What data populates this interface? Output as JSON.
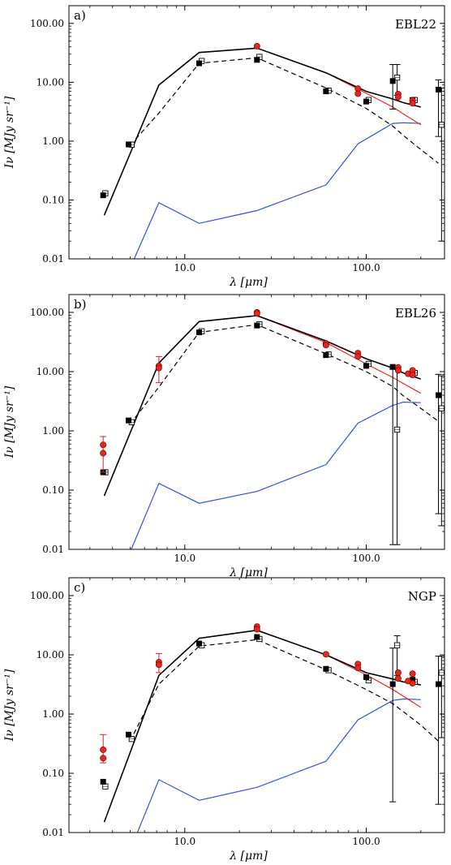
{
  "chart_data": [
    {
      "type": "line",
      "panel_label": "a)",
      "field_label": "EBL22",
      "xlabel": "λ [μm]",
      "ylabel": "Iν [MJy sr⁻¹]",
      "xscale": "log",
      "yscale": "log",
      "xlim": [
        2.3,
        270
      ],
      "ylim": [
        0.01,
        200
      ],
      "xticks": [
        "10.0",
        "100.0"
      ],
      "yticks": [
        "0.01",
        "0.10",
        "1.00",
        "10.00",
        "100.00"
      ],
      "series": [
        {
          "style": "total",
          "color": "#000000",
          "x": [
            3.6,
            7.2,
            12,
            25,
            60,
            100,
            140,
            160,
            200
          ],
          "y": [
            0.055,
            9.0,
            32,
            38,
            14.5,
            7.0,
            5.2,
            4.5,
            3.8
          ]
        },
        {
          "style": "model-red",
          "color": "#e8281e",
          "x": [
            25,
            60,
            100,
            140,
            160,
            200
          ],
          "y": [
            38,
            14.5,
            6.5,
            3.8,
            2.9,
            1.9
          ]
        },
        {
          "style": "dashed",
          "color": "#000000",
          "x": [
            5.0,
            7.2,
            12,
            25,
            60,
            100,
            140,
            160,
            200,
            250
          ],
          "y": [
            0.85,
            3.0,
            21,
            26,
            8.0,
            3.6,
            1.8,
            1.25,
            0.72,
            0.42
          ]
        },
        {
          "style": "component-blue",
          "color": "#2b53e6",
          "x": [
            5.0,
            7.2,
            12,
            25,
            60,
            90,
            140,
            160,
            200
          ],
          "y": [
            0.007,
            0.09,
            0.04,
            0.066,
            0.18,
            0.9,
            2.0,
            2.05,
            2.0
          ]
        }
      ],
      "observed": [
        {
          "x": 3.55,
          "y": 0.12
        },
        {
          "x": 4.9,
          "y": 0.88
        },
        {
          "x": 12,
          "y": 21
        },
        {
          "x": 25,
          "y": 24
        },
        {
          "x": 60,
          "y": 7.0
        },
        {
          "x": 100,
          "y": 4.7
        },
        {
          "x": 140,
          "y": 10.5,
          "err": [
            3.5,
            20
          ]
        },
        {
          "x": 180,
          "y": 5.0
        },
        {
          "x": 250,
          "y": 7.5,
          "err": [
            1.2,
            11
          ]
        }
      ],
      "model_points": [
        {
          "x": 3.65,
          "y": 0.13
        },
        {
          "x": 5.1,
          "y": 0.87
        },
        {
          "x": 12.4,
          "y": 23
        },
        {
          "x": 25.8,
          "y": 27
        },
        {
          "x": 62,
          "y": 7.2
        },
        {
          "x": 103,
          "y": 5.0
        },
        {
          "x": 148,
          "y": 12,
          "err": [
            6,
            20
          ]
        },
        {
          "x": 185,
          "y": 5.0
        },
        {
          "x": 260,
          "y": 1.9,
          "err": [
            0.02,
            8
          ]
        }
      ],
      "red_points": [
        {
          "x": 25,
          "y": 41
        },
        {
          "x": 90,
          "y": 7.8
        },
        {
          "x": 90,
          "y": 6.4
        },
        {
          "x": 150,
          "y": 6.3
        },
        {
          "x": 150,
          "y": 5.6
        },
        {
          "x": 180,
          "y": 4.9
        },
        {
          "x": 180,
          "y": 4.4
        }
      ]
    },
    {
      "type": "line",
      "panel_label": "b)",
      "field_label": "EBL26",
      "xlabel": "λ [μm]",
      "ylabel": "Iν [MJy sr⁻¹]",
      "xscale": "log",
      "yscale": "log",
      "xlim": [
        2.3,
        270
      ],
      "ylim": [
        0.01,
        200
      ],
      "xticks": [
        "10.0",
        "100.0"
      ],
      "yticks": [
        "0.01",
        "0.10",
        "1.00",
        "10.00",
        "100.00"
      ],
      "series": [
        {
          "style": "total",
          "color": "#000000",
          "x": [
            3.6,
            7.2,
            12,
            25,
            60,
            100,
            140,
            160,
            200
          ],
          "y": [
            0.08,
            14,
            70,
            88,
            33,
            16.5,
            11.5,
            9.5,
            7.5
          ]
        },
        {
          "style": "model-red",
          "color": "#e8281e",
          "x": [
            25,
            60,
            100,
            140,
            160,
            200
          ],
          "y": [
            88,
            31,
            13.5,
            8.0,
            6.3,
            4.3
          ]
        },
        {
          "style": "dashed",
          "color": "#000000",
          "x": [
            5.0,
            7.2,
            12,
            25,
            60,
            100,
            140,
            160,
            200,
            250
          ],
          "y": [
            1.3,
            5.5,
            46,
            62,
            20,
            10,
            5.6,
            3.9,
            2.4,
            1.45
          ]
        },
        {
          "style": "component-blue",
          "color": "#2b53e6",
          "x": [
            5.0,
            7.2,
            12,
            25,
            60,
            90,
            140,
            160,
            200
          ],
          "y": [
            0.009,
            0.13,
            0.06,
            0.095,
            0.27,
            1.35,
            2.7,
            3.05,
            3.0
          ]
        }
      ],
      "observed": [
        {
          "x": 3.55,
          "y": 0.2
        },
        {
          "x": 4.9,
          "y": 1.5
        },
        {
          "x": 12,
          "y": 46
        },
        {
          "x": 25,
          "y": 60
        },
        {
          "x": 60,
          "y": 19
        },
        {
          "x": 100,
          "y": 12.5
        },
        {
          "x": 140,
          "y": 12,
          "err": [
            0.012,
            11
          ]
        },
        {
          "x": 180,
          "y": 9.0
        },
        {
          "x": 250,
          "y": 4.0,
          "err": [
            0.04,
            9
          ]
        }
      ],
      "model_points": [
        {
          "x": 3.65,
          "y": 0.2
        },
        {
          "x": 5.1,
          "y": 1.4
        },
        {
          "x": 12.4,
          "y": 48
        },
        {
          "x": 25.8,
          "y": 63
        },
        {
          "x": 62,
          "y": 19.5
        },
        {
          "x": 103,
          "y": 13.5
        },
        {
          "x": 148,
          "y": 1.05,
          "err": [
            0.012,
            11
          ]
        },
        {
          "x": 185,
          "y": 9.5
        },
        {
          "x": 260,
          "y": 2.4,
          "err": [
            0.025,
            8.5
          ]
        }
      ],
      "red_points": [
        {
          "x": 3.55,
          "y": 0.58
        },
        {
          "x": 3.55,
          "y": 0.42,
          "err": [
            0.2,
            0.8
          ]
        },
        {
          "x": 7.2,
          "y": 12.5,
          "err": [
            6.5,
            18
          ]
        },
        {
          "x": 7.2,
          "y": 11.5
        },
        {
          "x": 25,
          "y": 100
        },
        {
          "x": 25,
          "y": 96
        },
        {
          "x": 60,
          "y": 30
        },
        {
          "x": 60,
          "y": 28
        },
        {
          "x": 90,
          "y": 20.5
        },
        {
          "x": 90,
          "y": 18
        },
        {
          "x": 150,
          "y": 11.8
        },
        {
          "x": 150,
          "y": 10.5
        },
        {
          "x": 170,
          "y": 9.2
        },
        {
          "x": 180,
          "y": 10.5
        },
        {
          "x": 180,
          "y": 8.8
        }
      ]
    },
    {
      "type": "line",
      "panel_label": "c)",
      "field_label": "NGP",
      "xlabel": "λ [μm]",
      "ylabel": "Iν [MJy sr⁻¹]",
      "xscale": "log",
      "yscale": "log",
      "xlim": [
        2.3,
        270
      ],
      "ylim": [
        0.01,
        200
      ],
      "xticks": [
        "10.0",
        "100.0"
      ],
      "yticks": [
        "0.01",
        "0.10",
        "1.00",
        "10.00",
        "100.00"
      ],
      "series": [
        {
          "style": "total",
          "color": "#000000",
          "x": [
            3.6,
            7.2,
            12,
            25,
            60,
            100,
            140,
            160,
            200
          ],
          "y": [
            0.015,
            4.5,
            19,
            26,
            10,
            5.0,
            3.9,
            3.5,
            3.1
          ]
        },
        {
          "style": "model-red",
          "color": "#e8281e",
          "x": [
            25,
            60,
            100,
            140,
            160,
            200
          ],
          "y": [
            26,
            10,
            4.6,
            2.6,
            2.0,
            1.3
          ]
        },
        {
          "style": "dashed",
          "color": "#000000",
          "x": [
            5.0,
            7.2,
            12,
            25,
            60,
            100,
            140,
            160,
            200,
            250
          ],
          "y": [
            0.35,
            3.2,
            14,
            18,
            5.6,
            2.6,
            1.5,
            1.1,
            0.65,
            0.35
          ]
        },
        {
          "style": "component-blue",
          "color": "#2b53e6",
          "x": [
            5.0,
            7.2,
            12,
            25,
            60,
            90,
            140,
            160,
            200
          ],
          "y": [
            0.005,
            0.078,
            0.035,
            0.058,
            0.16,
            0.8,
            1.7,
            1.8,
            1.75
          ]
        }
      ],
      "observed": [
        {
          "x": 3.55,
          "y": 0.072
        },
        {
          "x": 4.9,
          "y": 0.45
        },
        {
          "x": 12,
          "y": 15.5
        },
        {
          "x": 25,
          "y": 20
        },
        {
          "x": 60,
          "y": 5.8
        },
        {
          "x": 100,
          "y": 4.2
        },
        {
          "x": 140,
          "y": 3.2,
          "err": [
            0.033,
            13
          ]
        },
        {
          "x": 180,
          "y": 3.8
        },
        {
          "x": 250,
          "y": 3.2,
          "err": [
            0.03,
            9.5
          ]
        }
      ],
      "model_points": [
        {
          "x": 3.65,
          "y": 0.06
        },
        {
          "x": 5.1,
          "y": 0.38
        },
        {
          "x": 12.4,
          "y": 14.5
        },
        {
          "x": 25.8,
          "y": 18.5
        },
        {
          "x": 62,
          "y": 5.5
        },
        {
          "x": 103,
          "y": 3.7
        },
        {
          "x": 148,
          "y": 14.5,
          "err": [
            4.5,
            21
          ]
        },
        {
          "x": 185,
          "y": 3.5
        },
        {
          "x": 260,
          "y": 5.0,
          "err": [
            0.4,
            9.5
          ]
        }
      ],
      "red_points": [
        {
          "x": 3.55,
          "y": 0.25,
          "err": [
            0.15,
            0.45
          ]
        },
        {
          "x": 3.55,
          "y": 0.18
        },
        {
          "x": 7.2,
          "y": 7.5,
          "err": [
            5,
            10.5
          ]
        },
        {
          "x": 7.2,
          "y": 6.8
        },
        {
          "x": 25,
          "y": 30
        },
        {
          "x": 25,
          "y": 27
        },
        {
          "x": 60,
          "y": 10.2
        },
        {
          "x": 90,
          "y": 7.0
        },
        {
          "x": 90,
          "y": 6.0
        },
        {
          "x": 150,
          "y": 5.0
        },
        {
          "x": 150,
          "y": 4.0
        },
        {
          "x": 170,
          "y": 3.6
        },
        {
          "x": 180,
          "y": 4.8
        },
        {
          "x": 180,
          "y": 3.3
        }
      ]
    }
  ]
}
